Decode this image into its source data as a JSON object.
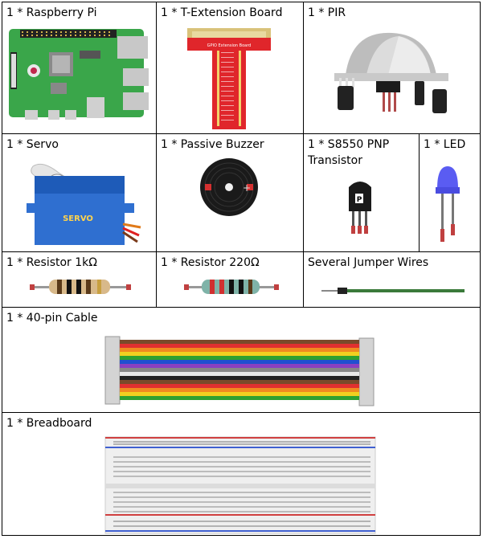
{
  "items": {
    "raspberry_pi": "1 * Raspberry Pi",
    "t_extension_board": "1 * T-Extension Board",
    "pir": "1 * PIR",
    "servo": "1 * Servo",
    "passive_buzzer": "1 * Passive Buzzer",
    "transistor": "1 * S8550 PNP Transistor",
    "led": "1 * LED",
    "resistor_1k": "1 * Resistor 1kΩ",
    "resistor_220": "1 * Resistor 220Ω",
    "jumper_wires": "Several Jumper Wires",
    "cable_40pin": "1 * 40-pin Cable",
    "breadboard": "1 * Breadboard"
  },
  "artwork": {
    "servo_text": "SERVO",
    "board_header": "GPIO Extension Board",
    "transistor_mark": "P"
  },
  "colors": {
    "pi_green": "#3aa64a",
    "ext_red": "#e0262b",
    "servo_blue": "#2f6fd0",
    "led_blue": "#5a5cf2",
    "wire_green": "#3a7a3a"
  }
}
